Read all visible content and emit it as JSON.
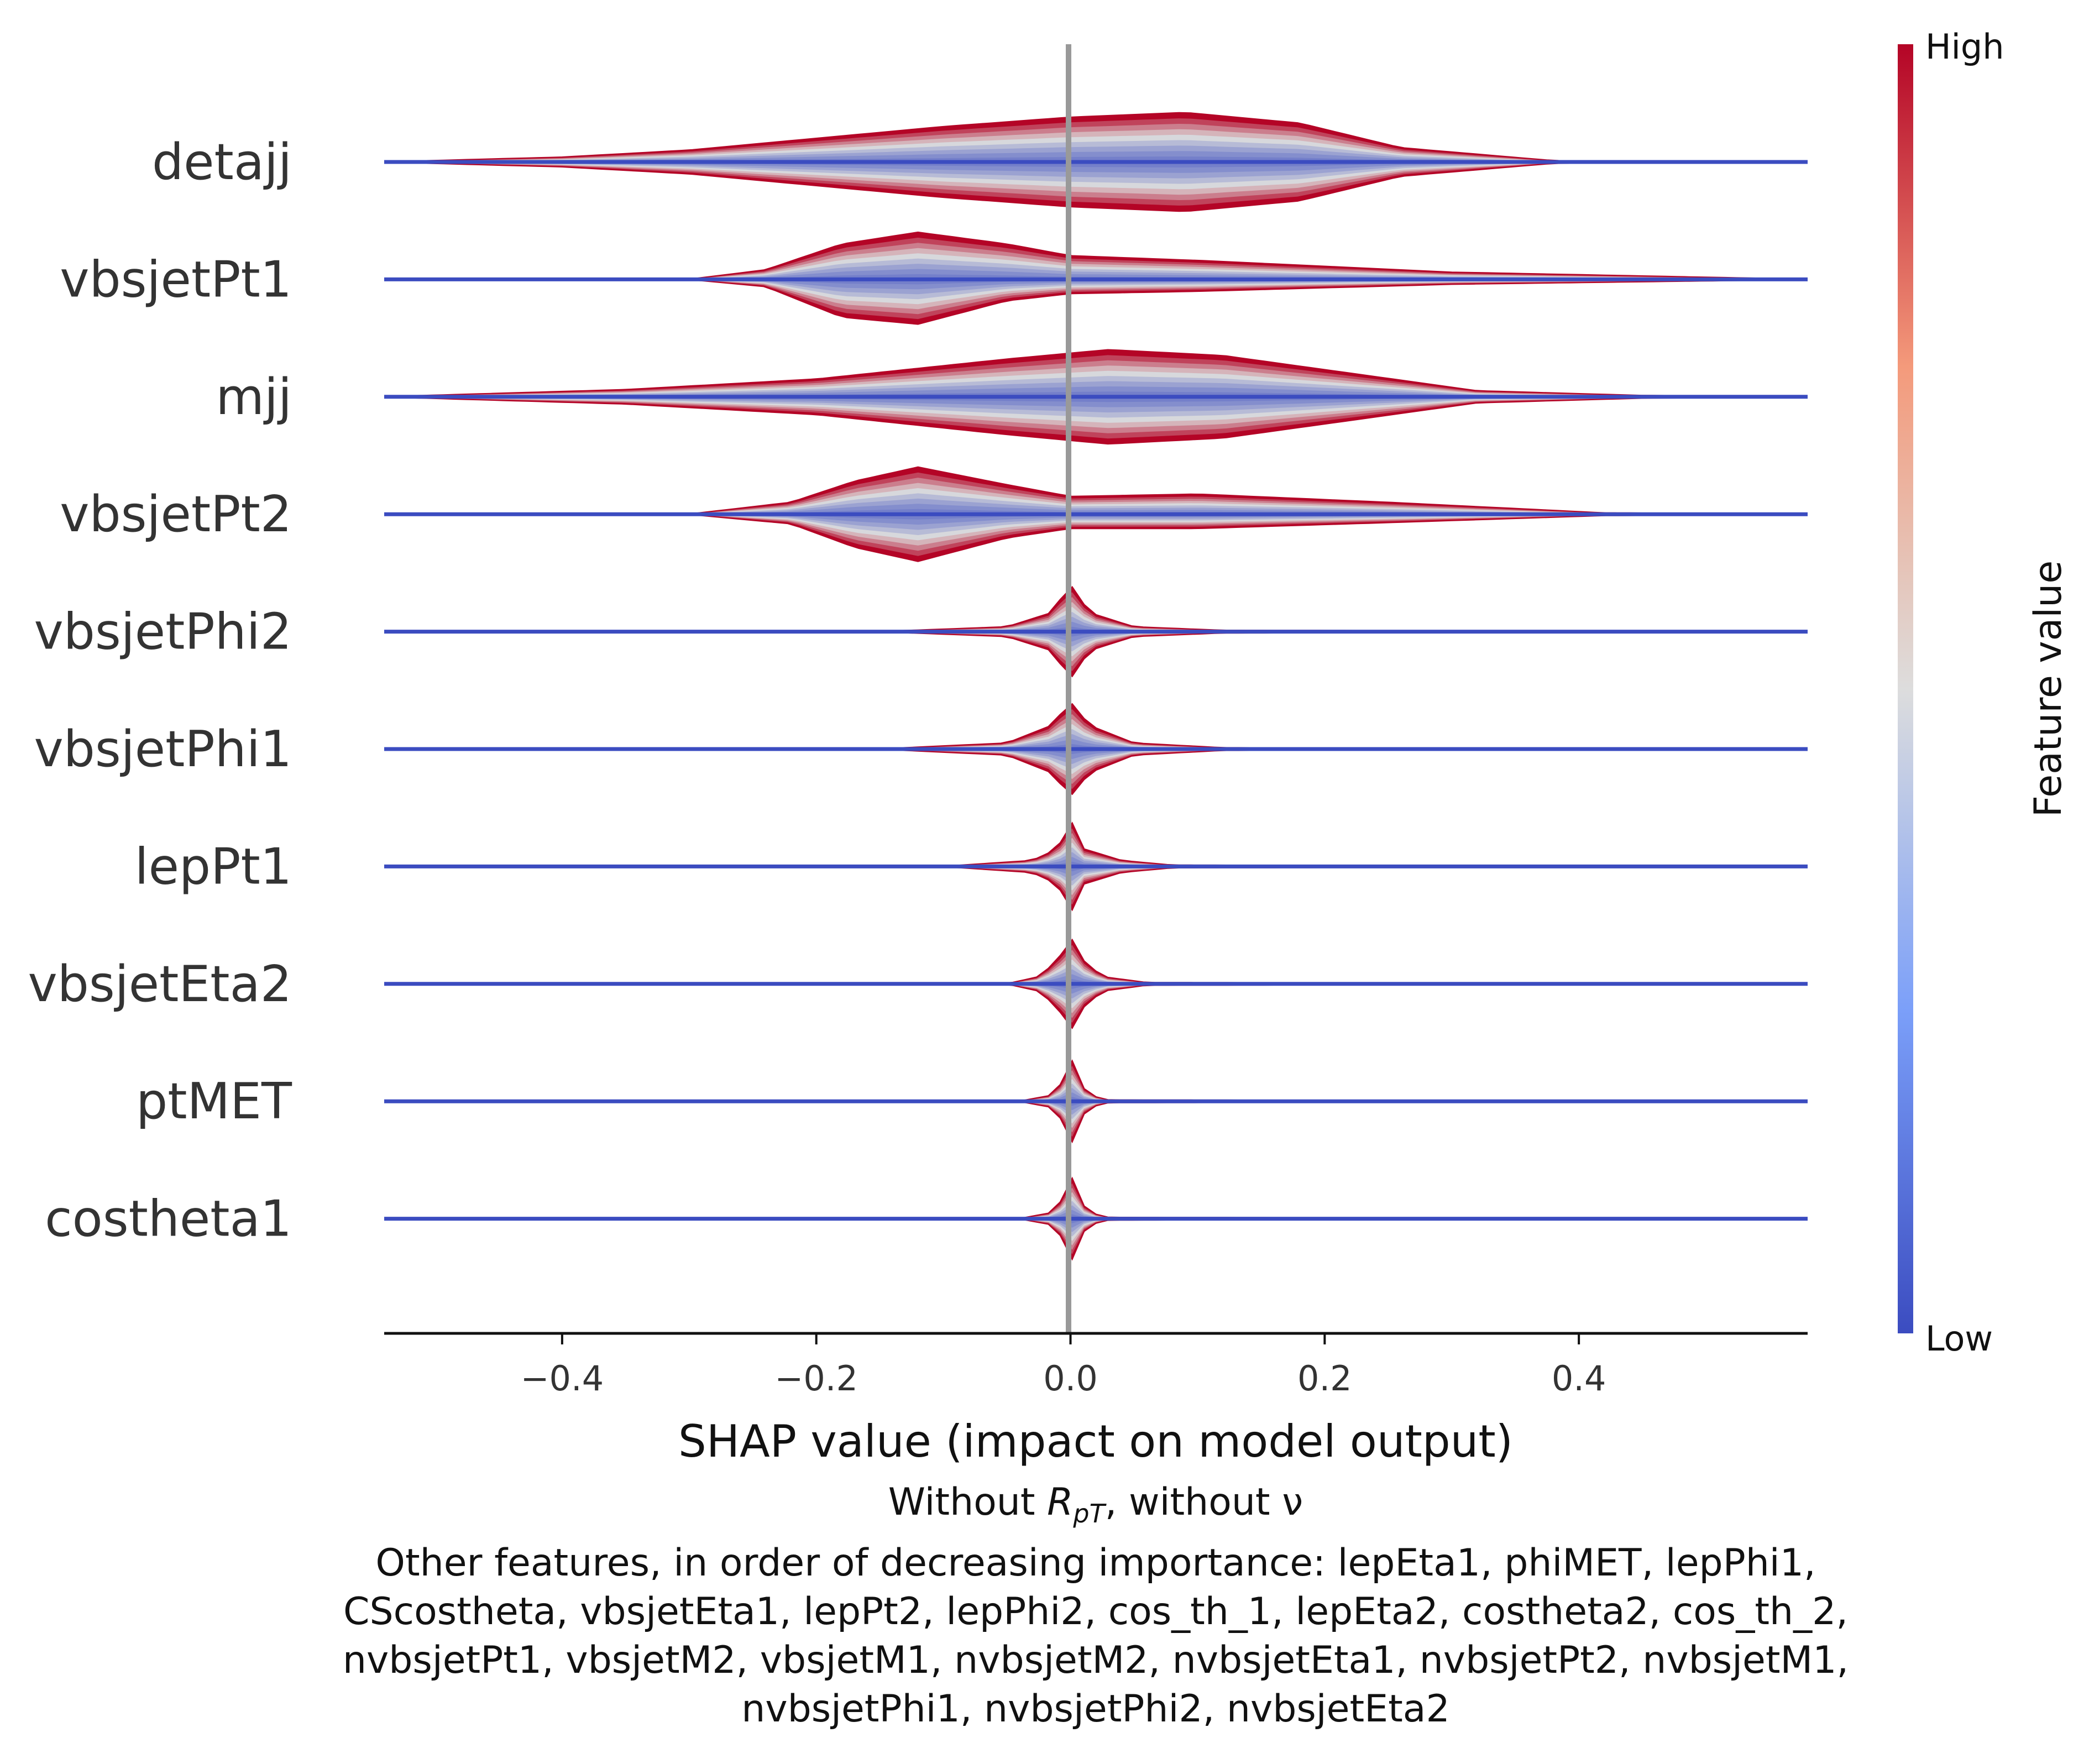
{
  "chart_data": {
    "type": "violin",
    "title": "",
    "xlabel": "SHAP value (impact on model output)",
    "xlim": [
      -0.54,
      0.58
    ],
    "xticks": [
      -0.4,
      -0.2,
      0.0,
      0.2,
      0.4
    ],
    "xtick_labels": [
      "−0.4",
      "−0.2",
      "0.0",
      "0.2",
      "0.4"
    ],
    "features": [
      "detajj",
      "vbsjetPt1",
      "mjj",
      "vbsjetPt2",
      "vbsjetPhi2",
      "vbsjetPhi1",
      "lepPt1",
      "vbsjetEta2",
      "ptMET",
      "costheta1"
    ],
    "violins": [
      {
        "feature": "detajj",
        "upper": [
          [
            -0.54,
            0
          ],
          [
            -0.4,
            0.04
          ],
          [
            -0.3,
            0.1
          ],
          [
            -0.2,
            0.2
          ],
          [
            -0.1,
            0.3
          ],
          [
            0.0,
            0.38
          ],
          [
            0.09,
            0.42
          ],
          [
            0.18,
            0.33
          ],
          [
            0.26,
            0.12
          ],
          [
            0.38,
            0.01
          ],
          [
            0.58,
            0
          ]
        ],
        "lower": [
          [
            -0.54,
            0
          ],
          [
            -0.4,
            0.04
          ],
          [
            -0.3,
            0.1
          ],
          [
            -0.2,
            0.2
          ],
          [
            -0.1,
            0.3
          ],
          [
            0.0,
            0.38
          ],
          [
            0.09,
            0.42
          ],
          [
            0.18,
            0.33
          ],
          [
            0.26,
            0.12
          ],
          [
            0.38,
            0.01
          ],
          [
            0.58,
            0
          ]
        ],
        "top_color": "high",
        "bottom_color": "high"
      },
      {
        "feature": "vbsjetPt1",
        "upper": [
          [
            -0.54,
            0
          ],
          [
            -0.3,
            0
          ],
          [
            -0.24,
            0.08
          ],
          [
            -0.18,
            0.3
          ],
          [
            -0.12,
            0.4
          ],
          [
            -0.05,
            0.3
          ],
          [
            0.0,
            0.2
          ],
          [
            0.1,
            0.16
          ],
          [
            0.3,
            0.06
          ],
          [
            0.58,
            0
          ]
        ],
        "lower": [
          [
            -0.54,
            0
          ],
          [
            -0.3,
            0
          ],
          [
            -0.24,
            0.06
          ],
          [
            -0.18,
            0.32
          ],
          [
            -0.12,
            0.38
          ],
          [
            -0.05,
            0.18
          ],
          [
            0.0,
            0.12
          ],
          [
            0.1,
            0.1
          ],
          [
            0.3,
            0.04
          ],
          [
            0.58,
            0
          ]
        ],
        "top_color": "high",
        "bottom_color": "high"
      },
      {
        "feature": "mjj",
        "upper": [
          [
            -0.54,
            0
          ],
          [
            -0.35,
            0.06
          ],
          [
            -0.2,
            0.15
          ],
          [
            -0.05,
            0.32
          ],
          [
            0.03,
            0.4
          ],
          [
            0.12,
            0.35
          ],
          [
            0.22,
            0.2
          ],
          [
            0.32,
            0.05
          ],
          [
            0.45,
            0.01
          ],
          [
            0.58,
            0
          ]
        ],
        "lower": [
          [
            -0.54,
            0
          ],
          [
            -0.35,
            0.06
          ],
          [
            -0.2,
            0.15
          ],
          [
            -0.05,
            0.32
          ],
          [
            0.03,
            0.4
          ],
          [
            0.12,
            0.35
          ],
          [
            0.22,
            0.2
          ],
          [
            0.32,
            0.05
          ],
          [
            0.45,
            0.01
          ],
          [
            0.58,
            0
          ]
        ],
        "top_color": "high",
        "bottom_color": "high"
      },
      {
        "feature": "vbsjetPt2",
        "upper": [
          [
            -0.54,
            0
          ],
          [
            -0.3,
            0
          ],
          [
            -0.22,
            0.1
          ],
          [
            -0.17,
            0.28
          ],
          [
            -0.12,
            0.4
          ],
          [
            -0.05,
            0.25
          ],
          [
            0.0,
            0.15
          ],
          [
            0.1,
            0.17
          ],
          [
            0.25,
            0.1
          ],
          [
            0.42,
            0.01
          ],
          [
            0.58,
            0
          ]
        ],
        "lower": [
          [
            -0.54,
            0
          ],
          [
            -0.3,
            0
          ],
          [
            -0.22,
            0.08
          ],
          [
            -0.17,
            0.28
          ],
          [
            -0.12,
            0.4
          ],
          [
            -0.05,
            0.2
          ],
          [
            0.0,
            0.12
          ],
          [
            0.1,
            0.12
          ],
          [
            0.25,
            0.07
          ],
          [
            0.42,
            0.01
          ],
          [
            0.58,
            0
          ]
        ],
        "top_color": "high",
        "bottom_color": "high"
      },
      {
        "feature": "vbsjetPhi2",
        "upper": [
          [
            -0.54,
            0
          ],
          [
            -0.15,
            0
          ],
          [
            -0.05,
            0.04
          ],
          [
            -0.015,
            0.16
          ],
          [
            0.0,
            0.4
          ],
          [
            0.015,
            0.16
          ],
          [
            0.05,
            0.04
          ],
          [
            0.12,
            0.01
          ],
          [
            0.58,
            0
          ]
        ],
        "lower": [
          [
            -0.54,
            0
          ],
          [
            -0.15,
            0
          ],
          [
            -0.05,
            0.04
          ],
          [
            -0.015,
            0.16
          ],
          [
            0.0,
            0.4
          ],
          [
            0.015,
            0.16
          ],
          [
            0.05,
            0.04
          ],
          [
            0.12,
            0.01
          ],
          [
            0.58,
            0
          ]
        ],
        "top_color": "high",
        "bottom_color": "high"
      },
      {
        "feature": "vbsjetPhi1",
        "upper": [
          [
            -0.54,
            0
          ],
          [
            -0.15,
            0
          ],
          [
            -0.05,
            0.05
          ],
          [
            -0.015,
            0.2
          ],
          [
            0.0,
            0.4
          ],
          [
            0.015,
            0.2
          ],
          [
            0.05,
            0.05
          ],
          [
            0.12,
            0.01
          ],
          [
            0.58,
            0
          ]
        ],
        "lower": [
          [
            -0.54,
            0
          ],
          [
            -0.15,
            0
          ],
          [
            -0.05,
            0.05
          ],
          [
            -0.015,
            0.2
          ],
          [
            0.0,
            0.4
          ],
          [
            0.015,
            0.2
          ],
          [
            0.05,
            0.05
          ],
          [
            0.12,
            0.01
          ],
          [
            0.58,
            0
          ]
        ],
        "top_color": "high",
        "bottom_color": "high"
      },
      {
        "feature": "lepPt1",
        "upper": [
          [
            -0.54,
            0
          ],
          [
            -0.1,
            0
          ],
          [
            -0.03,
            0.05
          ],
          [
            -0.01,
            0.15
          ],
          [
            0.0,
            0.4
          ],
          [
            0.01,
            0.15
          ],
          [
            0.04,
            0.05
          ],
          [
            0.08,
            0.01
          ],
          [
            0.58,
            0
          ]
        ],
        "lower": [
          [
            -0.54,
            0
          ],
          [
            -0.1,
            0
          ],
          [
            -0.03,
            0.05
          ],
          [
            -0.01,
            0.15
          ],
          [
            0.0,
            0.4
          ],
          [
            0.01,
            0.15
          ],
          [
            0.04,
            0.05
          ],
          [
            0.08,
            0.01
          ],
          [
            0.58,
            0
          ]
        ],
        "top_color": "high",
        "bottom_color": "high"
      },
      {
        "feature": "vbsjetEta2",
        "upper": [
          [
            -0.54,
            0
          ],
          [
            -0.05,
            0
          ],
          [
            -0.025,
            0.06
          ],
          [
            -0.01,
            0.2
          ],
          [
            0.0,
            0.4
          ],
          [
            0.01,
            0.2
          ],
          [
            0.025,
            0.06
          ],
          [
            0.06,
            0.01
          ],
          [
            0.58,
            0
          ]
        ],
        "lower": [
          [
            -0.54,
            0
          ],
          [
            -0.05,
            0
          ],
          [
            -0.025,
            0.06
          ],
          [
            -0.01,
            0.2
          ],
          [
            0.0,
            0.4
          ],
          [
            0.01,
            0.2
          ],
          [
            0.025,
            0.06
          ],
          [
            0.06,
            0.01
          ],
          [
            0.58,
            0
          ]
        ],
        "top_color": "high",
        "bottom_color": "high"
      },
      {
        "feature": "ptMET",
        "upper": [
          [
            -0.54,
            0
          ],
          [
            -0.04,
            0
          ],
          [
            -0.015,
            0.05
          ],
          [
            -0.005,
            0.18
          ],
          [
            0.0,
            0.4
          ],
          [
            0.005,
            0.18
          ],
          [
            0.015,
            0.05
          ],
          [
            0.03,
            0.01
          ],
          [
            0.58,
            0
          ]
        ],
        "lower": [
          [
            -0.54,
            0
          ],
          [
            -0.04,
            0
          ],
          [
            -0.015,
            0.05
          ],
          [
            -0.005,
            0.18
          ],
          [
            0.0,
            0.4
          ],
          [
            0.005,
            0.18
          ],
          [
            0.015,
            0.05
          ],
          [
            0.03,
            0.01
          ],
          [
            0.58,
            0
          ]
        ],
        "top_color": "high",
        "bottom_color": "high"
      },
      {
        "feature": "costheta1",
        "upper": [
          [
            -0.54,
            0
          ],
          [
            -0.04,
            0
          ],
          [
            -0.015,
            0.05
          ],
          [
            -0.005,
            0.18
          ],
          [
            0.0,
            0.4
          ],
          [
            0.005,
            0.18
          ],
          [
            0.015,
            0.05
          ],
          [
            0.03,
            0.01
          ],
          [
            0.58,
            0
          ]
        ],
        "lower": [
          [
            -0.54,
            0
          ],
          [
            -0.04,
            0
          ],
          [
            -0.015,
            0.05
          ],
          [
            -0.005,
            0.18
          ],
          [
            0.0,
            0.4
          ],
          [
            0.005,
            0.18
          ],
          [
            0.015,
            0.05
          ],
          [
            0.03,
            0.01
          ],
          [
            0.58,
            0
          ]
        ],
        "top_color": "high",
        "bottom_color": "high"
      }
    ],
    "colorbar": {
      "title": "Feature value",
      "high_label": "High",
      "low_label": "Low",
      "colormap": "coolwarm"
    },
    "caption_line1_prefix": "Without ",
    "caption_line1_symbol": "R",
    "caption_line1_sub": "pT",
    "caption_line1_suffix": ", without ν",
    "caption_lines": [
      "Other features, in order of decreasing importance: lepEta1, phiMET, lepPhi1,",
      "CScostheta, vbsjetEta1, lepPt2, lepPhi2, cos_th_1, lepEta2, costheta2, cos_th_2,",
      "nvbsjetPt1, vbsjetM2, vbsjetM1, nvbsjetM2, nvbsjetEta1, nvbsjetPt2, nvbsjetM1,",
      "nvbsjetPhi1, nvbsjetPhi2, nvbsjetEta2"
    ],
    "colors": {
      "high": "#b40426",
      "mid": "#dddddd",
      "low": "#3b4cc0",
      "axis": "#111111",
      "zero_line": "#999999"
    }
  }
}
